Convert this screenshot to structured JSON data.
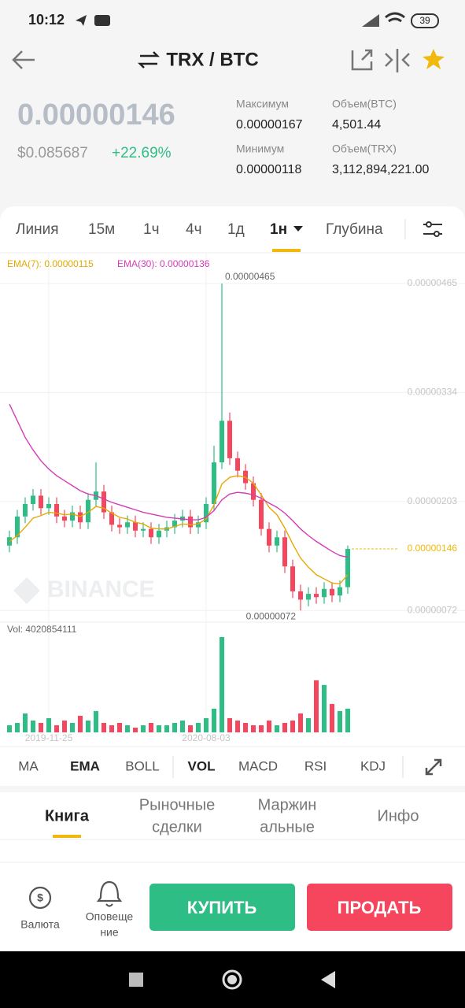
{
  "status": {
    "time": "10:12",
    "battery": "39"
  },
  "header": {
    "pair": "TRX / BTC"
  },
  "ticker": {
    "price": "0.00000146",
    "usd": "$0.085687",
    "change": "+22.69%",
    "stats": [
      {
        "label": "Максимум",
        "value": "0.00000167"
      },
      {
        "label": "Объем(BTC)",
        "value": "4,501.44"
      },
      {
        "label": "Минимум",
        "value": "0.00000118"
      },
      {
        "label": "Объем(TRX)",
        "value": "3,112,894,221.00"
      }
    ]
  },
  "intervals": [
    "Линия",
    "15м",
    "1ч",
    "4ч",
    "1д",
    "1н",
    "Глубина"
  ],
  "chart_data": {
    "type": "candlestick",
    "categories": [
      null,
      null,
      null,
      null,
      null,
      "2019-11-25",
      null,
      null,
      null,
      null,
      null,
      null,
      null,
      null,
      null,
      null,
      null,
      null,
      null,
      null,
      null,
      null,
      null,
      null,
      null,
      "2020-08-03",
      null,
      null,
      null,
      null,
      null,
      null,
      null,
      null,
      null,
      null,
      null,
      null,
      null,
      null,
      null,
      null,
      null,
      null
    ],
    "open": [
      1.5e-06,
      1.6e-06,
      1.85e-06,
      2e-06,
      2.1e-06,
      1.95e-06,
      2e-06,
      1.85e-06,
      1.8e-06,
      1.9e-06,
      1.78e-06,
      2.05e-06,
      2.15e-06,
      1.9e-06,
      1.75e-06,
      1.72e-06,
      1.78e-06,
      1.68e-06,
      1.7e-06,
      1.6e-06,
      1.68e-06,
      1.72e-06,
      1.8e-06,
      1.85e-06,
      1.72e-06,
      1.78e-06,
      2e-06,
      2.5e-06,
      3e-06,
      2.55e-06,
      2.4e-06,
      2.25e-06,
      2.05e-06,
      1.7e-06,
      1.5e-06,
      1.6e-06,
      1.25e-06,
      9.5e-07,
      8.5e-07,
      9.2e-07,
      8.8e-07,
      9.8e-07,
      9e-07,
      1e-06
    ],
    "high": [
      1.68e-06,
      1.93e-06,
      2.08e-06,
      2.18e-06,
      2.18e-06,
      2.08e-06,
      2.08e-06,
      1.93e-06,
      1.98e-06,
      1.98e-06,
      2.13e-06,
      2.5e-06,
      2.23e-06,
      1.98e-06,
      1.83e-06,
      1.86e-06,
      1.86e-06,
      1.78e-06,
      1.78e-06,
      1.76e-06,
      1.8e-06,
      1.88e-06,
      1.93e-06,
      1.93e-06,
      1.86e-06,
      2.08e-06,
      2.7e-06,
      4.65e-06,
      3.1e-06,
      2.63e-06,
      2.48e-06,
      2.33e-06,
      2.13e-06,
      1.78e-06,
      1.68e-06,
      1.68e-06,
      1.33e-06,
      1.03e-06,
      1e-06,
      1e-06,
      1.06e-06,
      1.06e-06,
      1.08e-06,
      1.5e-06
    ],
    "low": [
      1.42e-06,
      1.52e-06,
      1.77e-06,
      1.92e-06,
      1.87e-06,
      1.87e-06,
      1.77e-06,
      1.72e-06,
      1.72e-06,
      1.7e-06,
      1.7e-06,
      1.97e-06,
      1.82e-06,
      1.67e-06,
      1.64e-06,
      1.64e-06,
      1.6e-06,
      1.6e-06,
      1.52e-06,
      1.52e-06,
      1.6e-06,
      1.64e-06,
      1.72e-06,
      1.64e-06,
      1.64e-06,
      1.7e-06,
      1.92e-06,
      2.42e-06,
      2.47e-06,
      2.32e-06,
      2.17e-06,
      1.97e-06,
      1.62e-06,
      1.42e-06,
      1.42e-06,
      1.17e-06,
      8.7e-07,
      7.2e-07,
      7.7e-07,
      8e-07,
      8e-07,
      8.2e-07,
      8.2e-07,
      9.2e-07
    ],
    "close": [
      1.6e-06,
      1.85e-06,
      2e-06,
      2.1e-06,
      1.95e-06,
      2e-06,
      1.85e-06,
      1.8e-06,
      1.9e-06,
      1.78e-06,
      2.05e-06,
      2.15e-06,
      1.9e-06,
      1.75e-06,
      1.72e-06,
      1.78e-06,
      1.68e-06,
      1.7e-06,
      1.6e-06,
      1.68e-06,
      1.72e-06,
      1.8e-06,
      1.85e-06,
      1.72e-06,
      1.78e-06,
      2e-06,
      2.5e-06,
      3e-06,
      2.55e-06,
      2.4e-06,
      2.25e-06,
      2.05e-06,
      1.7e-06,
      1.5e-06,
      1.6e-06,
      1.25e-06,
      9.5e-07,
      8.5e-07,
      9.2e-07,
      8.8e-07,
      9.8e-07,
      9e-07,
      1e-06,
      1.46e-06
    ],
    "series": [
      {
        "name": "EMA(7): 0.00000115",
        "color": "#e6a800",
        "values": [
          1.55e-06,
          1.62e-06,
          1.72e-06,
          1.83e-06,
          1.86e-06,
          1.9e-06,
          1.89e-06,
          1.87e-06,
          1.88e-06,
          1.85e-06,
          1.9e-06,
          1.97e-06,
          1.95e-06,
          1.89e-06,
          1.84e-06,
          1.82e-06,
          1.78e-06,
          1.76e-06,
          1.71e-06,
          1.7e-06,
          1.7e-06,
          1.73e-06,
          1.76e-06,
          1.75e-06,
          1.76e-06,
          1.82e-06,
          1.99e-06,
          2.24e-06,
          2.32e-06,
          2.34e-06,
          2.32e-06,
          2.25e-06,
          2.11e-06,
          1.96e-06,
          1.87e-06,
          1.71e-06,
          1.52e-06,
          1.35e-06,
          1.24e-06,
          1.15e-06,
          1.1e-06,
          1.05e-06,
          1.04e-06,
          1.15e-06
        ]
      },
      {
        "name": "EMA(30): 0.00000136",
        "color": "#d63bb7",
        "values": [
          3.2e-06,
          3e-06,
          2.8e-06,
          2.65e-06,
          2.52e-06,
          2.42e-06,
          2.34e-06,
          2.28e-06,
          2.22e-06,
          2.16e-06,
          2.12e-06,
          2.1e-06,
          2.06e-06,
          2.02e-06,
          1.99e-06,
          1.96e-06,
          1.93e-06,
          1.9e-06,
          1.88e-06,
          1.86e-06,
          1.84e-06,
          1.83e-06,
          1.82e-06,
          1.81e-06,
          1.81e-06,
          1.84e-06,
          1.92e-06,
          2.05e-06,
          2.12e-06,
          2.14e-06,
          2.13e-06,
          2.11e-06,
          2.07e-06,
          2.01e-06,
          1.96e-06,
          1.89e-06,
          1.8e-06,
          1.7e-06,
          1.62e-06,
          1.55e-06,
          1.49e-06,
          1.43e-06,
          1.38e-06,
          1.36e-06
        ]
      }
    ],
    "up_color": "#2ebd85",
    "down_color": "#f6465d",
    "ylim": [
      5.8e-07,
      5.01e-06
    ],
    "yticks": [
      {
        "value": 4.65e-06,
        "label": "0.00000465"
      },
      {
        "value": 3.34e-06,
        "label": "0.00000334"
      },
      {
        "value": 2.03e-06,
        "label": "0.00000203"
      },
      {
        "value": 7.2e-07,
        "label": "0.00000072"
      }
    ],
    "grid": true,
    "high_label": "0.00000465",
    "low_label": "0.00000072",
    "last_price": {
      "value": 1.46e-06,
      "label": "0.00000146"
    },
    "watermark": "BINANCE",
    "volume_label": "Vol: 4020854111",
    "volume": [
      300000000.0,
      400000000.0,
      800000000.0,
      500000000.0,
      400000000.0,
      600000000.0,
      300000000.0,
      500000000.0,
      400000000.0,
      700000000.0,
      500000000.0,
      900000000.0,
      400000000.0,
      300000000.0,
      400000000.0,
      300000000.0,
      200000000.0,
      300000000.0,
      400000000.0,
      300000000.0,
      300000000.0,
      400000000.0,
      500000000.0,
      300000000.0,
      400000000.0,
      600000000.0,
      1000000000.0,
      4020854111,
      600000000.0,
      500000000.0,
      400000000.0,
      300000000.0,
      300000000.0,
      500000000.0,
      300000000.0,
      400000000.0,
      500000000.0,
      800000000.0,
      600000000.0,
      2200000000.0,
      2000000000.0,
      1200000000.0,
      900000000.0,
      1000000000.0
    ]
  },
  "indicators": [
    "MA",
    "EMA",
    "BOLL",
    "VOL",
    "MACD",
    "RSI",
    "KDJ"
  ],
  "tabs": [
    [
      "Книга"
    ],
    [
      "Рыночные",
      "сделки"
    ],
    [
      "Маржин",
      "альные"
    ],
    [
      "Инфо"
    ]
  ],
  "bottom": {
    "currency": "Валюта",
    "alerts": [
      "Оповеще",
      "ние"
    ],
    "buy": "КУПИТЬ",
    "sell": "ПРОДАТЬ"
  }
}
